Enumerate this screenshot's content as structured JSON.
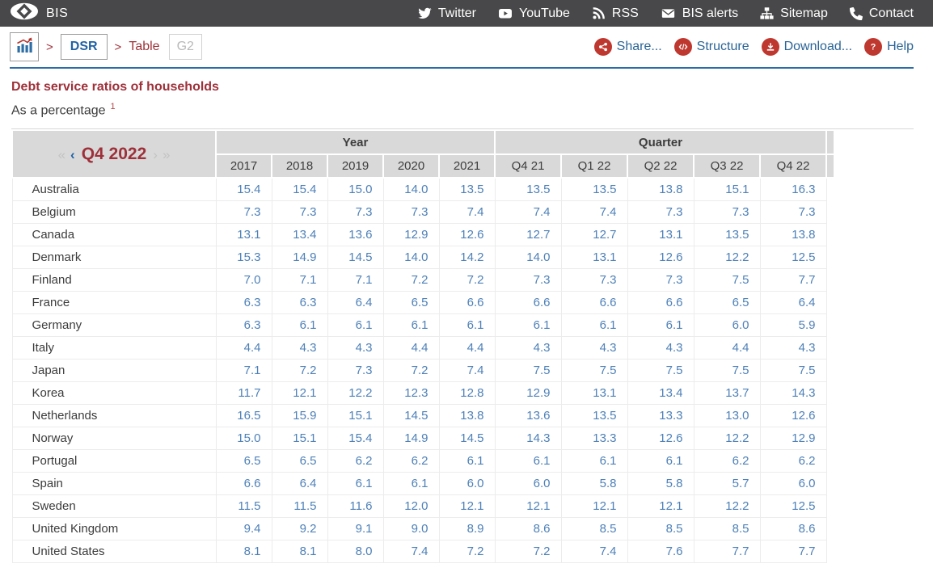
{
  "colors": {
    "topbar_bg": "#48484a",
    "accent_blue": "#1f63a5",
    "rule_blue": "#2a6ca6",
    "brand_red": "#9e3039",
    "icon_red": "#bf382f",
    "value_blue": "#4e81b8",
    "header_gray": "#d9d9d9"
  },
  "topbar": {
    "brand": "BIS",
    "items": [
      {
        "icon": "twitter-icon",
        "label": "Twitter"
      },
      {
        "icon": "youtube-icon",
        "label": "YouTube"
      },
      {
        "icon": "rss-icon",
        "label": "RSS"
      },
      {
        "icon": "envelope-icon",
        "label": "BIS alerts"
      },
      {
        "icon": "sitemap-icon",
        "label": "Sitemap"
      },
      {
        "icon": "phone-icon",
        "label": "Contact"
      }
    ]
  },
  "breadcrumb": {
    "separator": ">",
    "home_icon": "bar-chart-icon",
    "dsr_label": "DSR",
    "table_label": "Table",
    "code_label": "G2",
    "actions": [
      {
        "icon": "share-icon",
        "label": "Share..."
      },
      {
        "icon": "code-icon",
        "label": "Structure"
      },
      {
        "icon": "download-icon",
        "label": "Download..."
      },
      {
        "icon": "help-icon",
        "label": "Help"
      }
    ]
  },
  "page": {
    "title": "Debt service ratios of households",
    "subtitle": "As a percentage",
    "footnote_ref": "1"
  },
  "table": {
    "pager": {
      "first_label": "«",
      "prev_label": "‹",
      "current_label": "Q4 2022",
      "next_label": "›",
      "last_label": "»"
    },
    "column_groups": [
      {
        "label": "Year",
        "columns": [
          "2017",
          "2018",
          "2019",
          "2020",
          "2021"
        ]
      },
      {
        "label": "Quarter",
        "columns": [
          "Q4 21",
          "Q1 22",
          "Q2 22",
          "Q3 22",
          "Q4 22"
        ]
      }
    ],
    "rows": [
      {
        "country": "Australia",
        "values": [
          "15.4",
          "15.4",
          "15.0",
          "14.0",
          "13.5",
          "13.5",
          "13.5",
          "13.8",
          "15.1",
          "16.3"
        ]
      },
      {
        "country": "Belgium",
        "values": [
          "7.3",
          "7.3",
          "7.3",
          "7.3",
          "7.4",
          "7.4",
          "7.4",
          "7.3",
          "7.3",
          "7.3"
        ]
      },
      {
        "country": "Canada",
        "values": [
          "13.1",
          "13.4",
          "13.6",
          "12.9",
          "12.6",
          "12.7",
          "12.7",
          "13.1",
          "13.5",
          "13.8"
        ]
      },
      {
        "country": "Denmark",
        "values": [
          "15.3",
          "14.9",
          "14.5",
          "14.0",
          "14.2",
          "14.0",
          "13.1",
          "12.6",
          "12.2",
          "12.5"
        ]
      },
      {
        "country": "Finland",
        "values": [
          "7.0",
          "7.1",
          "7.1",
          "7.2",
          "7.2",
          "7.3",
          "7.3",
          "7.3",
          "7.5",
          "7.7"
        ]
      },
      {
        "country": "France",
        "values": [
          "6.3",
          "6.3",
          "6.4",
          "6.5",
          "6.6",
          "6.6",
          "6.6",
          "6.6",
          "6.5",
          "6.4"
        ]
      },
      {
        "country": "Germany",
        "values": [
          "6.3",
          "6.1",
          "6.1",
          "6.1",
          "6.1",
          "6.1",
          "6.1",
          "6.1",
          "6.0",
          "5.9"
        ]
      },
      {
        "country": "Italy",
        "values": [
          "4.4",
          "4.3",
          "4.3",
          "4.4",
          "4.4",
          "4.3",
          "4.3",
          "4.3",
          "4.4",
          "4.3"
        ]
      },
      {
        "country": "Japan",
        "values": [
          "7.1",
          "7.2",
          "7.3",
          "7.2",
          "7.4",
          "7.5",
          "7.5",
          "7.5",
          "7.5",
          "7.5"
        ]
      },
      {
        "country": "Korea",
        "values": [
          "11.7",
          "12.1",
          "12.2",
          "12.3",
          "12.8",
          "12.9",
          "13.1",
          "13.4",
          "13.7",
          "14.3"
        ]
      },
      {
        "country": "Netherlands",
        "values": [
          "16.5",
          "15.9",
          "15.1",
          "14.5",
          "13.8",
          "13.6",
          "13.5",
          "13.3",
          "13.0",
          "12.6"
        ]
      },
      {
        "country": "Norway",
        "values": [
          "15.0",
          "15.1",
          "15.4",
          "14.9",
          "14.5",
          "14.3",
          "13.3",
          "12.6",
          "12.2",
          "12.9"
        ]
      },
      {
        "country": "Portugal",
        "values": [
          "6.5",
          "6.5",
          "6.2",
          "6.2",
          "6.1",
          "6.1",
          "6.1",
          "6.1",
          "6.2",
          "6.2"
        ]
      },
      {
        "country": "Spain",
        "values": [
          "6.6",
          "6.4",
          "6.1",
          "6.1",
          "6.0",
          "6.0",
          "5.8",
          "5.8",
          "5.7",
          "6.0"
        ]
      },
      {
        "country": "Sweden",
        "values": [
          "11.5",
          "11.5",
          "11.6",
          "12.0",
          "12.1",
          "12.1",
          "12.1",
          "12.1",
          "12.2",
          "12.5"
        ]
      },
      {
        "country": "United Kingdom",
        "values": [
          "9.4",
          "9.2",
          "9.1",
          "9.0",
          "8.9",
          "8.6",
          "8.5",
          "8.5",
          "8.5",
          "8.6"
        ]
      },
      {
        "country": "United States",
        "values": [
          "8.1",
          "8.1",
          "8.0",
          "7.4",
          "7.2",
          "7.2",
          "7.4",
          "7.6",
          "7.7",
          "7.7"
        ]
      }
    ]
  }
}
